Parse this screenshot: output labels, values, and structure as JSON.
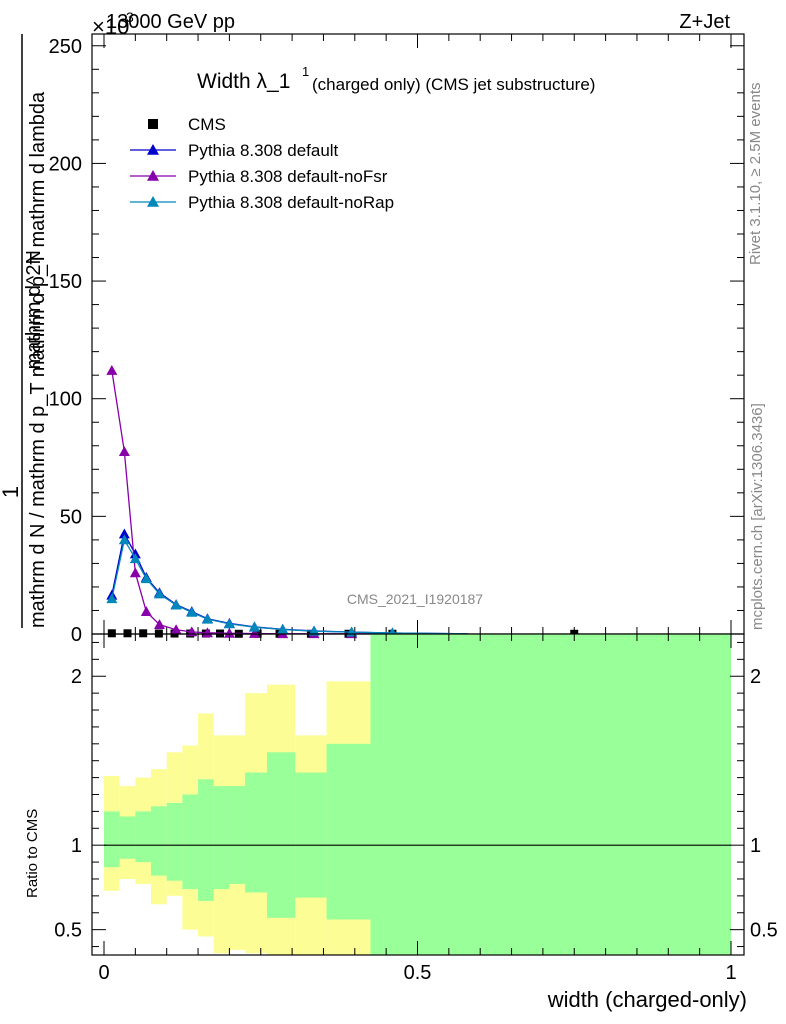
{
  "header": {
    "left": "13000 GeV pp",
    "right": "Z+Jet",
    "exponent": "×10",
    "exponent_power": "3"
  },
  "side_labels": {
    "rivet": "Rivet 3.1.10, ≥ 2.5M events",
    "mcplots": "mcplots.cern.ch [arXiv:1306.3436]"
  },
  "watermark": "CMS_2021_I1920187",
  "chart_data": {
    "type": "line",
    "title": "Width λ_1^1 (charged only) (CMS jet substructure)",
    "title_parts": {
      "main": "Width λ_1",
      "sup": "1",
      "sub": "(charged only) (CMS jet substructure)"
    },
    "xlabel": "width (charged-only)",
    "ylabel_num": "1",
    "ylabel_den": "mathrm d N / mathrm d p_T mathrm d p_T mathrm d lambda",
    "ylabel_top": "mathrm d^2N",
    "ylabel_full": "1 / (mathrm d N / mathrm d p_T) · mathrm d^2N / (mathrm d p_T mathrm d lambda)",
    "xlim": [
      0,
      1
    ],
    "ylim": [
      0,
      255
    ],
    "yticks": [
      0,
      50,
      100,
      150,
      200,
      250
    ],
    "xticks": [
      0,
      0.5,
      1
    ],
    "xtick_labels": [
      "0",
      "0.5",
      "1"
    ],
    "legend_position": "top-left",
    "series": [
      {
        "name": "CMS",
        "marker": "square",
        "color": "#000000",
        "x": [
          0.0125,
          0.0375,
          0.0625,
          0.0875,
          0.1125,
          0.1375,
          0.1625,
          0.185,
          0.215,
          0.245,
          0.28,
          0.33,
          0.39,
          0.46,
          0.75
        ],
        "y": [
          0.3,
          0.3,
          0.3,
          0.2,
          0.2,
          0.2,
          0.2,
          0.2,
          0.1,
          0.1,
          0.1,
          0.1,
          0.1,
          0.1,
          0.1
        ]
      },
      {
        "name": "Pythia 8.308 default",
        "marker": "triangle",
        "color": "#0000cc",
        "x": [
          0.0125,
          0.0325,
          0.05,
          0.0675,
          0.0885,
          0.115,
          0.14,
          0.165,
          0.2,
          0.24,
          0.285,
          0.335,
          0.395,
          0.46,
          0.58
        ],
        "y": [
          16.5,
          42.5,
          34,
          24,
          17.5,
          12.5,
          9.5,
          6.5,
          4.5,
          3,
          2,
          1.3,
          0.8,
          0.4,
          0.1
        ]
      },
      {
        "name": "Pythia 8.308 default-noFsr",
        "marker": "triangle",
        "color": "#8800aa",
        "x": [
          0.0125,
          0.0325,
          0.05,
          0.0675,
          0.0885,
          0.115,
          0.14,
          0.165,
          0.2,
          0.24,
          0.285,
          0.335,
          0.395,
          0.46,
          0.58
        ],
        "y": [
          112,
          77.5,
          26,
          9.5,
          4,
          1.8,
          0.9,
          0.5,
          0.3,
          0.2,
          0.1,
          0.1,
          0.1,
          0.1,
          0.1
        ]
      },
      {
        "name": "Pythia 8.308 default-noRap",
        "marker": "triangle",
        "color": "#0088bb",
        "x": [
          0.0125,
          0.0325,
          0.05,
          0.0675,
          0.0885,
          0.115,
          0.14,
          0.165,
          0.2,
          0.24,
          0.285,
          0.335,
          0.395,
          0.46,
          0.58
        ],
        "y": [
          15,
          40,
          32,
          23.5,
          17,
          12.3,
          9.2,
          6.3,
          4.3,
          2.9,
          1.9,
          1.2,
          0.8,
          0.4,
          0.1
        ]
      }
    ],
    "ratio": {
      "ylabel": "Ratio to CMS",
      "ylim": [
        0.35,
        2.25
      ],
      "yticks": [
        0.5,
        1,
        2
      ],
      "ytick_labels": [
        "0.5",
        "1",
        "2"
      ],
      "bin_edges": [
        0,
        0.025,
        0.05,
        0.075,
        0.1,
        0.125,
        0.15,
        0.175,
        0.2,
        0.225,
        0.26,
        0.305,
        0.355,
        0.425,
        0.5,
        1.0
      ],
      "yellow_low": [
        0.73,
        0.8,
        0.77,
        0.65,
        0.7,
        0.5,
        0.46,
        0.36,
        0.38,
        0.36,
        0.35,
        0.35,
        0.35,
        0.35,
        0.35,
        0.69
      ],
      "yellow_high": [
        1.41,
        1.35,
        1.4,
        1.45,
        1.55,
        1.59,
        1.78,
        1.65,
        1.65,
        1.9,
        1.95,
        1.65,
        1.97,
        2.25,
        2.25,
        1.76
      ],
      "green_low": [
        0.87,
        0.92,
        0.9,
        0.82,
        0.79,
        0.74,
        0.67,
        0.74,
        0.77,
        0.72,
        0.57,
        0.69,
        0.56,
        0.35,
        0.35,
        0.69
      ],
      "green_high": [
        1.2,
        1.17,
        1.2,
        1.23,
        1.25,
        1.3,
        1.39,
        1.35,
        1.35,
        1.43,
        1.55,
        1.43,
        1.6,
        2.25,
        2.25,
        1.44
      ]
    }
  }
}
